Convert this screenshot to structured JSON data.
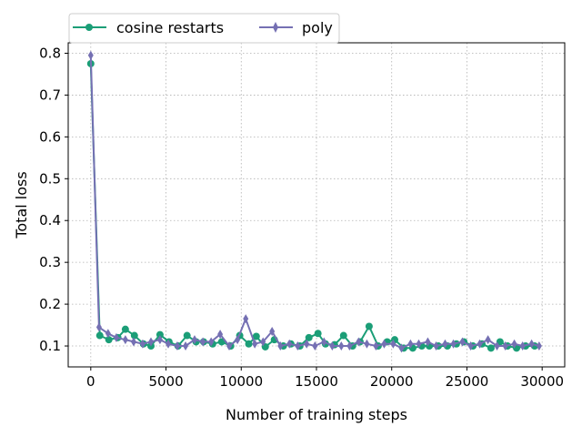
{
  "chart_data": {
    "type": "line",
    "xlabel": "Number of training steps",
    "ylabel": "Total loss",
    "xlim": [
      -1500,
      31500
    ],
    "ylim": [
      0.05,
      0.825
    ],
    "xticks": [
      0,
      5000,
      10000,
      15000,
      20000,
      25000,
      30000
    ],
    "yticks": [
      0.1,
      0.2,
      0.3,
      0.4,
      0.5,
      0.6,
      0.7,
      0.8
    ],
    "grid": true,
    "legend_placement": "top-left",
    "series": [
      {
        "name": "cosine restarts",
        "color": "#1b9e77",
        "marker": "circle",
        "x": [
          0,
          600,
          1200,
          1800,
          2300,
          2900,
          3500,
          4000,
          4600,
          5200,
          5800,
          6400,
          7000,
          7500,
          8100,
          8700,
          9300,
          9900,
          10500,
          11000,
          11600,
          12200,
          12800,
          13300,
          13900,
          14500,
          15100,
          15600,
          16200,
          16800,
          17400,
          17900,
          18500,
          19100,
          19700,
          20200,
          20800,
          21400,
          22000,
          22500,
          23100,
          23700,
          24300,
          24800,
          25400,
          26000,
          26600,
          27200,
          27700,
          28300,
          28900,
          29500
        ],
        "values": [
          0.775,
          0.125,
          0.115,
          0.12,
          0.14,
          0.125,
          0.105,
          0.1,
          0.127,
          0.11,
          0.1,
          0.125,
          0.11,
          0.11,
          0.105,
          0.11,
          0.1,
          0.125,
          0.105,
          0.123,
          0.098,
          0.115,
          0.1,
          0.105,
          0.1,
          0.12,
          0.13,
          0.105,
          0.103,
          0.125,
          0.1,
          0.11,
          0.147,
          0.1,
          0.11,
          0.115,
          0.095,
          0.095,
          0.1,
          0.1,
          0.1,
          0.1,
          0.105,
          0.11,
          0.1,
          0.105,
          0.095,
          0.11,
          0.1,
          0.095,
          0.1,
          0.1
        ]
      },
      {
        "name": "poly",
        "color": "#7570b3",
        "marker": "thin_diamond",
        "x": [
          0,
          550,
          1150,
          1700,
          2300,
          2850,
          3450,
          4000,
          4600,
          5150,
          5750,
          6300,
          6900,
          7450,
          8000,
          8600,
          9200,
          9750,
          10300,
          10900,
          11450,
          12050,
          12600,
          13200,
          13750,
          14350,
          14900,
          15500,
          16050,
          16650,
          17200,
          17800,
          18350,
          18950,
          19500,
          20100,
          20650,
          21250,
          21800,
          22400,
          22950,
          23550,
          24100,
          24700,
          25250,
          25850,
          26400,
          27000,
          27550,
          28150,
          28700,
          29300,
          29800
        ],
        "values": [
          0.795,
          0.145,
          0.13,
          0.12,
          0.115,
          0.11,
          0.105,
          0.11,
          0.115,
          0.105,
          0.1,
          0.1,
          0.115,
          0.11,
          0.11,
          0.128,
          0.1,
          0.115,
          0.165,
          0.105,
          0.11,
          0.135,
          0.1,
          0.105,
          0.1,
          0.105,
          0.1,
          0.11,
          0.1,
          0.1,
          0.1,
          0.11,
          0.105,
          0.1,
          0.105,
          0.105,
          0.095,
          0.105,
          0.105,
          0.11,
          0.1,
          0.105,
          0.105,
          0.11,
          0.1,
          0.105,
          0.115,
          0.1,
          0.1,
          0.105,
          0.1,
          0.105,
          0.1
        ]
      }
    ]
  }
}
